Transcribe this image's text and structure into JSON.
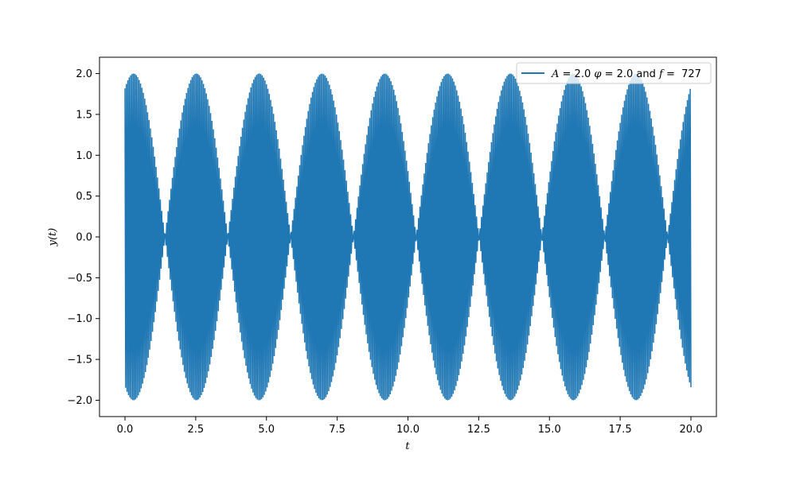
{
  "chart_data": {
    "type": "line",
    "title": "",
    "xlabel": "t",
    "ylabel": "y(t)",
    "xlim": [
      -0.9,
      20.9
    ],
    "ylim": [
      -2.2,
      2.2
    ],
    "xticks": [
      0.0,
      2.5,
      5.0,
      7.5,
      10.0,
      12.5,
      15.0,
      17.5,
      20.0
    ],
    "xtick_labels": [
      "0.0",
      "2.5",
      "5.0",
      "7.5",
      "10.0",
      "12.5",
      "15.0",
      "17.5",
      "20.0"
    ],
    "yticks": [
      -2.0,
      -1.5,
      -1.0,
      -0.5,
      0.0,
      0.5,
      1.0,
      1.5,
      2.0
    ],
    "ytick_labels": [
      "−2.0",
      "−1.5",
      "−1.0",
      "−0.5",
      "0.0",
      "0.5",
      "1.0",
      "1.5",
      "2.0"
    ],
    "grid": false,
    "legend_position": "top-right",
    "series": [
      {
        "name": "A = 2.0 φ = 2.0 and f = 727",
        "legend": {
          "A_sym": "A",
          "A_val": " = 2.0 ",
          "phi_sym": "φ",
          "phi_val": " = 2.0 and ",
          "f_sym": "f",
          "f_val": " =  727"
        },
        "color": "#1f77b4",
        "amplitude": 2.0,
        "phase": 2.0,
        "frequency": 727,
        "t_range": [
          0.0,
          20.0
        ],
        "sample_step": 0.025,
        "visible_alias_period": 2.22
      }
    ]
  }
}
